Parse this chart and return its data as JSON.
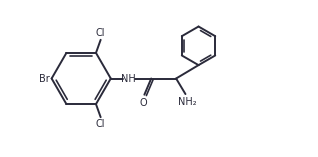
{
  "bg_color": "#ffffff",
  "line_color": "#2a2a3a",
  "line_width": 1.4,
  "font_size": 7.0,
  "font_family": "DejaVu Sans",
  "xlim": [
    0,
    10
  ],
  "ylim": [
    0,
    5
  ]
}
